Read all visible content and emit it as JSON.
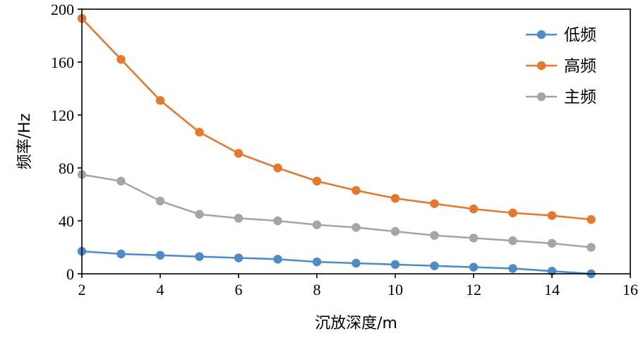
{
  "chart_data": {
    "type": "line",
    "xlabel": "沉放深度/m",
    "ylabel": "频率/Hz",
    "xlim": [
      2,
      16
    ],
    "ylim": [
      0,
      200
    ],
    "xticks": [
      2,
      4,
      6,
      8,
      10,
      12,
      14,
      16
    ],
    "yticks": [
      0,
      40,
      80,
      120,
      160,
      200
    ],
    "grid": false,
    "legend_position": "top-right",
    "x": [
      2,
      3,
      4,
      5,
      6,
      7,
      8,
      9,
      10,
      11,
      12,
      13,
      14,
      15
    ],
    "series": [
      {
        "name": "低频",
        "color": "#4e8ac8",
        "values": [
          17,
          15,
          14,
          13,
          12,
          11,
          9,
          8,
          7,
          6,
          5,
          4,
          2,
          0
        ]
      },
      {
        "name": "高频",
        "color": "#e8772e",
        "values": [
          193,
          162,
          131,
          107,
          91,
          80,
          70,
          63,
          57,
          53,
          49,
          46,
          44,
          41
        ]
      },
      {
        "name": "主频",
        "color": "#a5a5a5",
        "values": [
          75,
          70,
          55,
          45,
          42,
          40,
          37,
          35,
          32,
          29,
          27,
          25,
          23,
          20
        ]
      }
    ]
  }
}
